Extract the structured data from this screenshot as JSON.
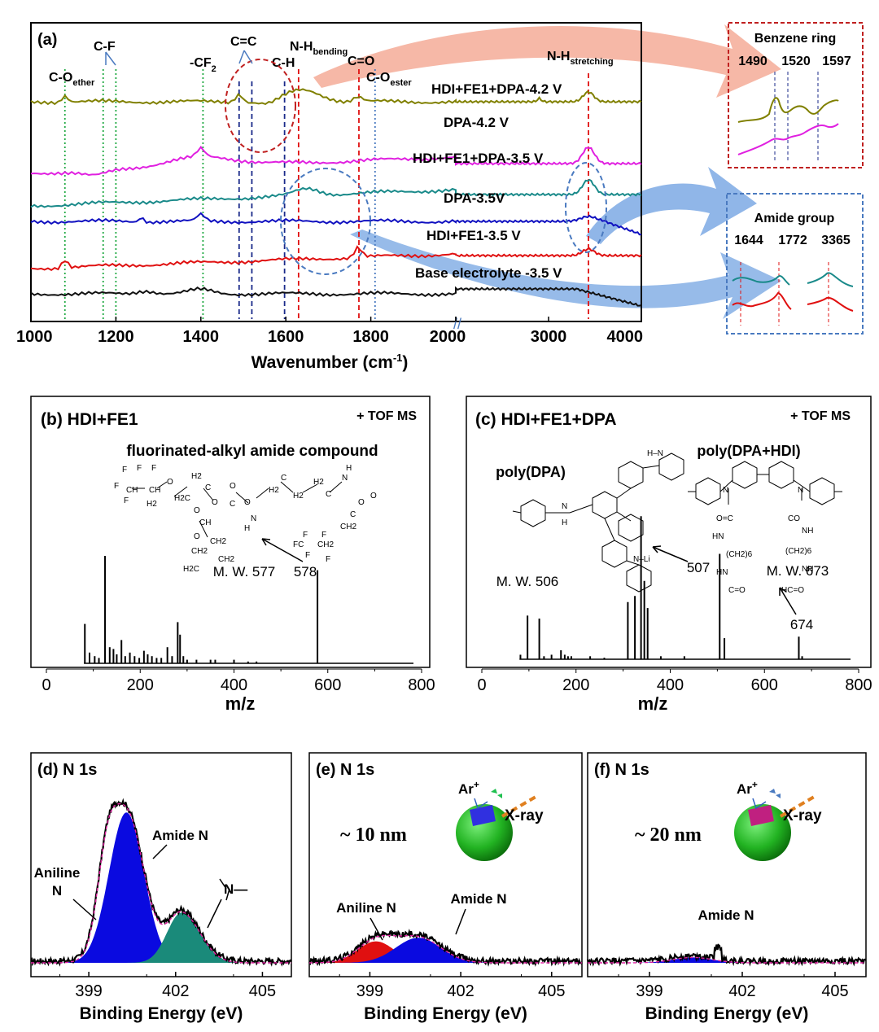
{
  "chart_data": [
    {
      "panel": "(a)",
      "type": "line",
      "xlabel": "Wavenumber (cm-1)",
      "x_ticks": [
        "1000",
        "1200",
        "1400",
        "1600",
        "1800",
        "2000",
        "2000",
        "3000",
        "4000"
      ],
      "x_ranges": [
        [
          1000,
          2000
        ],
        [
          2000,
          4000
        ]
      ],
      "series": [
        {
          "name": "HDI+FE1+DPA-4.2 V",
          "color": "#808000"
        },
        {
          "name": "DPA-4.2 V",
          "color": "#e020e0"
        },
        {
          "name": "HDI+FE1+DPA-3.5 V",
          "color": "#1a8a8a"
        },
        {
          "name": "DPA-3.5V",
          "color": "#1010c0"
        },
        {
          "name": "HDI+FE1-3.5 V",
          "color": "#e01010"
        },
        {
          "name": "Base electrolyte -3.5 V",
          "color": "#111111"
        }
      ],
      "bands": [
        {
          "label": "C-O",
          "sub": "ether",
          "x": 1080,
          "color": "#22aa44",
          "style": "dotted"
        },
        {
          "label": "C-F",
          "sub": "",
          "x": 1170,
          "color": "#22aa44",
          "style": "dotted"
        },
        {
          "label": "",
          "sub": "",
          "x": 1200,
          "color": "#22aa44",
          "style": "dotted"
        },
        {
          "label": "-CF",
          "sub": "2",
          "x": 1405,
          "color": "#22aa44",
          "style": "dotted"
        },
        {
          "label": "C=C",
          "sub": "",
          "x": 1490,
          "color": "#1a2a8a",
          "style": "dashed"
        },
        {
          "label": "",
          "sub": "",
          "x": 1520,
          "color": "#1a2a8a",
          "style": "dashed"
        },
        {
          "label": "C-H",
          "sub": "",
          "x": 1597,
          "color": "#1a2a8a",
          "style": "dashed"
        },
        {
          "label": "N-H",
          "sub": "bending",
          "x": 1630,
          "color": "#e01010",
          "style": "dashed"
        },
        {
          "label": "C=O",
          "sub": "",
          "x": 1772,
          "color": "#e01010",
          "style": "dashed"
        },
        {
          "label": "C-O",
          "sub": "ester",
          "x": 1810,
          "color": "#4a7ac0",
          "style": "dotted"
        },
        {
          "label": "N-H",
          "sub": "stretching",
          "x": 3430,
          "color": "#e01010",
          "style": "dashed"
        }
      ],
      "insets": [
        {
          "title": "Benzene ring",
          "peaks": [
            "1490",
            "1520",
            "1597"
          ],
          "border": "#c02020"
        },
        {
          "title": "Amide group",
          "peaks": [
            "1644",
            "1772",
            "3365"
          ],
          "border": "#4a7ac0"
        }
      ]
    },
    {
      "panel": "(b)",
      "type": "bar",
      "title": "HDI+FE1",
      "mode": "+ TOF MS",
      "annotation": "fluorinated-alkyl amide compound",
      "mw_label": "M. W. 577",
      "peak_label": "578",
      "xlabel": "m/z",
      "xlim": [
        0,
        800
      ],
      "x_ticks": [
        0,
        200,
        400,
        600,
        800
      ],
      "ylim": [
        0,
        100
      ],
      "peaks": [
        [
          82,
          22
        ],
        [
          92,
          6
        ],
        [
          103,
          4
        ],
        [
          112,
          3
        ],
        [
          125,
          60
        ],
        [
          135,
          9
        ],
        [
          143,
          8
        ],
        [
          150,
          5
        ],
        [
          160,
          13
        ],
        [
          168,
          4
        ],
        [
          178,
          6
        ],
        [
          188,
          4
        ],
        [
          198,
          3
        ],
        [
          208,
          7
        ],
        [
          216,
          5
        ],
        [
          225,
          4
        ],
        [
          235,
          3
        ],
        [
          245,
          3
        ],
        [
          258,
          9
        ],
        [
          268,
          4
        ],
        [
          280,
          23
        ],
        [
          285,
          16
        ],
        [
          292,
          4
        ],
        [
          300,
          2
        ],
        [
          320,
          2
        ],
        [
          350,
          2
        ],
        [
          360,
          2
        ],
        [
          400,
          2
        ],
        [
          430,
          1
        ],
        [
          448,
          1
        ],
        [
          578,
          52
        ]
      ]
    },
    {
      "panel": "(c)",
      "type": "bar",
      "title": "HDI+FE1+DPA",
      "mode": "+ TOF MS",
      "labels": [
        "poly(DPA)",
        "poly(DPA+HDI)"
      ],
      "mw_labels": [
        "M. W. 506",
        "M. W. 673"
      ],
      "peak_labels": [
        "507",
        "674"
      ],
      "xlabel": "m/z",
      "xlim": [
        0,
        800
      ],
      "x_ticks": [
        0,
        200,
        400,
        600,
        800
      ],
      "ylim": [
        0,
        100
      ],
      "peaks": [
        [
          82,
          3
        ],
        [
          97,
          29
        ],
        [
          122,
          27
        ],
        [
          132,
          2
        ],
        [
          148,
          3
        ],
        [
          168,
          6
        ],
        [
          176,
          3
        ],
        [
          183,
          2
        ],
        [
          190,
          2
        ],
        [
          230,
          2
        ],
        [
          260,
          1
        ],
        [
          310,
          38
        ],
        [
          325,
          42
        ],
        [
          338,
          95
        ],
        [
          345,
          52
        ],
        [
          352,
          34
        ],
        [
          380,
          2
        ],
        [
          430,
          2
        ],
        [
          505,
          70
        ],
        [
          515,
          14
        ],
        [
          673,
          15
        ],
        [
          680,
          2
        ]
      ]
    },
    {
      "panel": "(d)",
      "type": "area",
      "title": "N 1s",
      "xlabel": "Binding Energy (eV)",
      "xlim": [
        397,
        406
      ],
      "x_ticks": [
        399,
        402,
        405
      ],
      "ylim": [
        0,
        100
      ],
      "components": [
        {
          "name": "Aniline N",
          "center": 399.6,
          "height": 32,
          "width": 0.45,
          "color": "#e01010"
        },
        {
          "name": "Amide N",
          "center": 400.3,
          "height": 84,
          "width": 0.85,
          "color": "#0a0ae0"
        },
        {
          "name": "N-",
          "center": 402.2,
          "height": 28,
          "width": 1.0,
          "color": "#1a8a7a"
        }
      ],
      "labels": [
        "Aniline",
        "N",
        "Amide N",
        "N—"
      ]
    },
    {
      "panel": "(e)",
      "type": "area",
      "title": "N 1s",
      "depth": "~ 10 nm",
      "ion": "Ar+",
      "xray": "X-ray",
      "xlabel": "Binding Energy (eV)",
      "xlim": [
        397,
        406
      ],
      "x_ticks": [
        399,
        402,
        405
      ],
      "ylim": [
        0,
        100
      ],
      "components": [
        {
          "name": "Aniline N",
          "center": 399.2,
          "height": 12,
          "width": 0.85,
          "color": "#e01010"
        },
        {
          "name": "Amide N",
          "center": 400.6,
          "height": 14,
          "width": 1.05,
          "color": "#0a0ae0"
        }
      ],
      "labels": [
        "Aniline N",
        "Amide N"
      ]
    },
    {
      "panel": "(f)",
      "type": "area",
      "title": "N 1s",
      "depth": "~ 20 nm",
      "ion": "Ar+",
      "xray": "X-ray",
      "xlabel": "Binding Energy (eV)",
      "xlim": [
        397,
        406
      ],
      "x_ticks": [
        399,
        402,
        405
      ],
      "ylim": [
        0,
        100
      ],
      "components": [
        {
          "name": "Amide N",
          "center": 400.4,
          "height": 3,
          "width": 0.9,
          "color": "#0a0ae0"
        }
      ],
      "labels": [
        "Amide N"
      ]
    }
  ]
}
